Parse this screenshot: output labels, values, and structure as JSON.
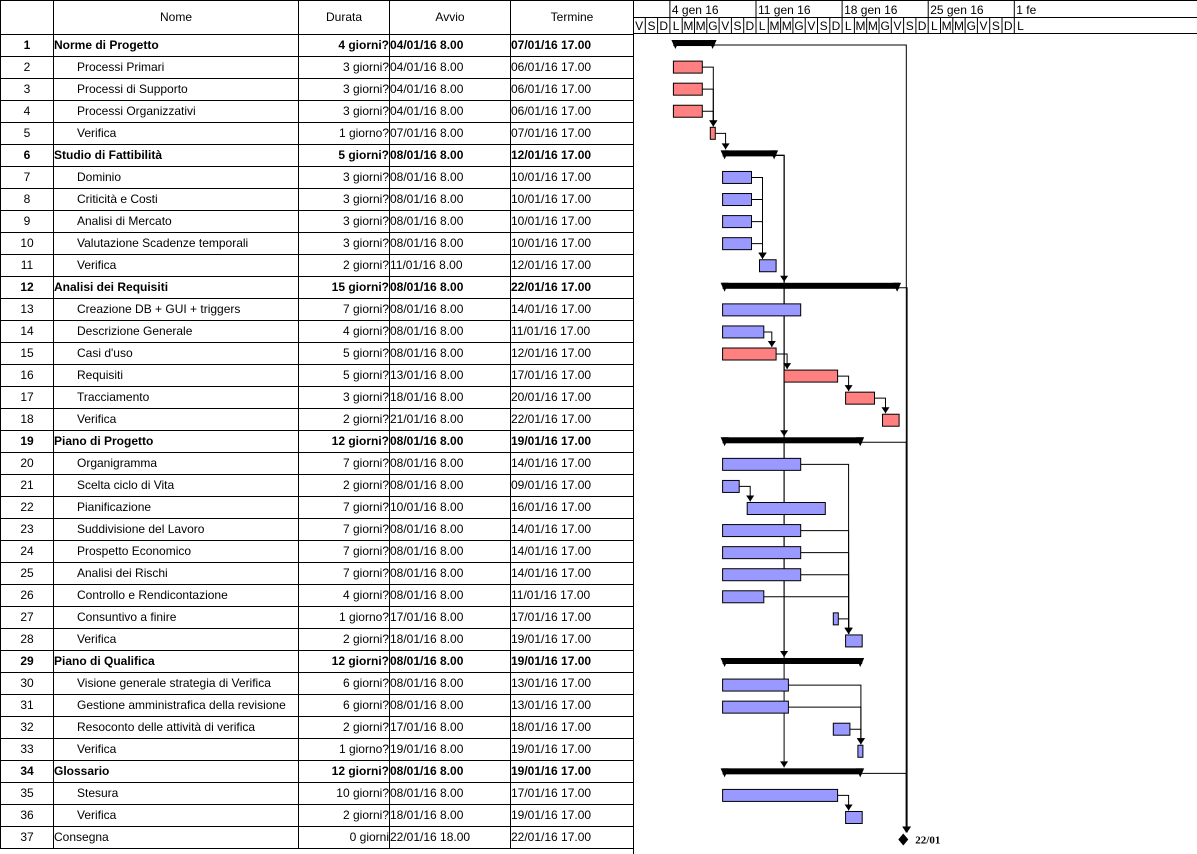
{
  "columns": {
    "id": "",
    "name": "Nome",
    "duration": "Durata",
    "start": "Avvio",
    "end": "Termine"
  },
  "timescale": {
    "weeks": [
      "4 gen 16",
      "11 gen 16",
      "18 gen 16",
      "25 gen 16",
      "1 fe"
    ],
    "day_letters": [
      "V",
      "S",
      "D",
      "L",
      "M",
      "M",
      "G",
      "V",
      "S",
      "D",
      "L",
      "M",
      "M",
      "G",
      "V",
      "S",
      "D",
      "L",
      "M",
      "M",
      "G",
      "V",
      "S",
      "D",
      "L",
      "M",
      "M",
      "G",
      "V",
      "S",
      "D",
      "L"
    ],
    "first_day": "2016-01-01"
  },
  "colors": {
    "normal": "#9999ff",
    "critical": "#ff8080",
    "summary": "#000000",
    "grid": "#000000"
  },
  "tasks": [
    {
      "id": "1",
      "name": "Norme di Progetto",
      "duration": "4 giorni?",
      "start": "04/01/16 8.00",
      "end": "07/01/16 17.00",
      "summary": true
    },
    {
      "id": "2",
      "name": "Processi Primari",
      "duration": "3 giorni?",
      "start": "04/01/16 8.00",
      "end": "06/01/16 17.00",
      "critical": true
    },
    {
      "id": "3",
      "name": "Processi di Supporto",
      "duration": "3 giorni?",
      "start": "04/01/16 8.00",
      "end": "06/01/16 17.00",
      "critical": true
    },
    {
      "id": "4",
      "name": "Processi Organizzativi",
      "duration": "3 giorni?",
      "start": "04/01/16 8.00",
      "end": "06/01/16 17.00",
      "critical": true
    },
    {
      "id": "5",
      "name": "Verifica",
      "duration": "1 giorno?",
      "start": "07/01/16 8.00",
      "end": "07/01/16 17.00",
      "critical": true
    },
    {
      "id": "6",
      "name": "Studio di Fattibilità",
      "duration": "5 giorni?",
      "start": "08/01/16 8.00",
      "end": "12/01/16 17.00",
      "summary": true
    },
    {
      "id": "7",
      "name": "Dominio",
      "duration": "3 giorni?",
      "start": "08/01/16 8.00",
      "end": "10/01/16 17.00"
    },
    {
      "id": "8",
      "name": "Criticità e Costi",
      "duration": "3 giorni?",
      "start": "08/01/16 8.00",
      "end": "10/01/16 17.00"
    },
    {
      "id": "9",
      "name": "Analisi di Mercato",
      "duration": "3 giorni?",
      "start": "08/01/16 8.00",
      "end": "10/01/16 17.00"
    },
    {
      "id": "10",
      "name": "Valutazione Scadenze temporali",
      "duration": "3 giorni?",
      "start": "08/01/16 8.00",
      "end": "10/01/16 17.00"
    },
    {
      "id": "11",
      "name": "Verifica",
      "duration": "2 giorni?",
      "start": "11/01/16 8.00",
      "end": "12/01/16 17.00"
    },
    {
      "id": "12",
      "name": "Analisi dei Requisiti",
      "duration": "15 giorni?",
      "start": "08/01/16 8.00",
      "end": "22/01/16 17.00",
      "summary": true
    },
    {
      "id": "13",
      "name": "Creazione DB + GUI + triggers",
      "duration": "7 giorni?",
      "start": "08/01/16 8.00",
      "end": "14/01/16 17.00"
    },
    {
      "id": "14",
      "name": "Descrizione Generale",
      "duration": "4 giorni?",
      "start": "08/01/16 8.00",
      "end": "11/01/16 17.00"
    },
    {
      "id": "15",
      "name": "Casi d'uso",
      "duration": "5 giorni?",
      "start": "08/01/16 8.00",
      "end": "12/01/16 17.00",
      "critical": true
    },
    {
      "id": "16",
      "name": "Requisiti",
      "duration": "5 giorni?",
      "start": "13/01/16 8.00",
      "end": "17/01/16 17.00",
      "critical": true
    },
    {
      "id": "17",
      "name": "Tracciamento",
      "duration": "3 giorni?",
      "start": "18/01/16 8.00",
      "end": "20/01/16 17.00",
      "critical": true
    },
    {
      "id": "18",
      "name": "Verifica",
      "duration": "2 giorni?",
      "start": "21/01/16 8.00",
      "end": "22/01/16 17.00",
      "critical": true
    },
    {
      "id": "19",
      "name": "Piano di Progetto",
      "duration": "12 giorni?",
      "start": "08/01/16 8.00",
      "end": "19/01/16 17.00",
      "summary": true
    },
    {
      "id": "20",
      "name": "Organigramma",
      "duration": "7 giorni?",
      "start": "08/01/16 8.00",
      "end": "14/01/16 17.00"
    },
    {
      "id": "21",
      "name": "Scelta ciclo di Vita",
      "duration": "2 giorni?",
      "start": "08/01/16 8.00",
      "end": "09/01/16 17.00"
    },
    {
      "id": "22",
      "name": "Pianificazione",
      "duration": "7 giorni?",
      "start": "10/01/16 8.00",
      "end": "16/01/16 17.00"
    },
    {
      "id": "23",
      "name": "Suddivisione del Lavoro",
      "duration": "7 giorni?",
      "start": "08/01/16 8.00",
      "end": "14/01/16 17.00"
    },
    {
      "id": "24",
      "name": "Prospetto Economico",
      "duration": "7 giorni?",
      "start": "08/01/16 8.00",
      "end": "14/01/16 17.00"
    },
    {
      "id": "25",
      "name": "Analisi dei Rischi",
      "duration": "7 giorni?",
      "start": "08/01/16 8.00",
      "end": "14/01/16 17.00"
    },
    {
      "id": "26",
      "name": "Controllo e Rendicontazione",
      "duration": "4 giorni?",
      "start": "08/01/16 8.00",
      "end": "11/01/16 17.00"
    },
    {
      "id": "27",
      "name": "Consuntivo a finire",
      "duration": "1 giorno?",
      "start": "17/01/16 8.00",
      "end": "17/01/16 17.00"
    },
    {
      "id": "28",
      "name": "Verifica",
      "duration": "2 giorni?",
      "start": "18/01/16 8.00",
      "end": "19/01/16 17.00"
    },
    {
      "id": "29",
      "name": "Piano di Qualifica",
      "duration": "12 giorni?",
      "start": "08/01/16 8.00",
      "end": "19/01/16 17.00",
      "summary": true
    },
    {
      "id": "30",
      "name": "Visione generale strategia di Verifica",
      "duration": "6 giorni?",
      "start": "08/01/16 8.00",
      "end": "13/01/16 17.00"
    },
    {
      "id": "31",
      "name": "Gestione amministrafica della revisione",
      "duration": "6 giorni?",
      "start": "08/01/16 8.00",
      "end": "13/01/16 17.00"
    },
    {
      "id": "32",
      "name": "Resoconto delle attività di verifica",
      "duration": "2 giorni?",
      "start": "17/01/16 8.00",
      "end": "18/01/16 17.00"
    },
    {
      "id": "33",
      "name": "Verifica",
      "duration": "1 giorno?",
      "start": "19/01/16 8.00",
      "end": "19/01/16 17.00"
    },
    {
      "id": "34",
      "name": "Glossario",
      "duration": "12 giorni?",
      "start": "08/01/16 8.00",
      "end": "19/01/16 17.00",
      "summary": true
    },
    {
      "id": "35",
      "name": "Stesura",
      "duration": "10 giorni?",
      "start": "08/01/16 8.00",
      "end": "17/01/16 17.00"
    },
    {
      "id": "36",
      "name": "Verifica",
      "duration": "2 giorni?",
      "start": "18/01/16 8.00",
      "end": "19/01/16 17.00"
    },
    {
      "id": "37",
      "name": "Consegna",
      "duration": "0 giorni",
      "start": "22/01/16 18.00",
      "end": "22/01/16 17.00",
      "milestone": true,
      "label": "22/01"
    }
  ],
  "links": [
    [
      5,
      6
    ],
    [
      2,
      5
    ],
    [
      3,
      5
    ],
    [
      4,
      5
    ],
    [
      7,
      11
    ],
    [
      8,
      11
    ],
    [
      9,
      11
    ],
    [
      10,
      11
    ],
    [
      14,
      15
    ],
    [
      15,
      16
    ],
    [
      16,
      17
    ],
    [
      17,
      18
    ],
    [
      21,
      22
    ],
    [
      20,
      28
    ],
    [
      23,
      28
    ],
    [
      24,
      28
    ],
    [
      25,
      28
    ],
    [
      26,
      28
    ],
    [
      27,
      28
    ],
    [
      30,
      33
    ],
    [
      31,
      33
    ],
    [
      32,
      33
    ],
    [
      35,
      36
    ],
    [
      6,
      12
    ],
    [
      6,
      19
    ],
    [
      6,
      29
    ],
    [
      6,
      34
    ],
    [
      1,
      37
    ],
    [
      12,
      37
    ],
    [
      19,
      37
    ],
    [
      34,
      37
    ]
  ]
}
